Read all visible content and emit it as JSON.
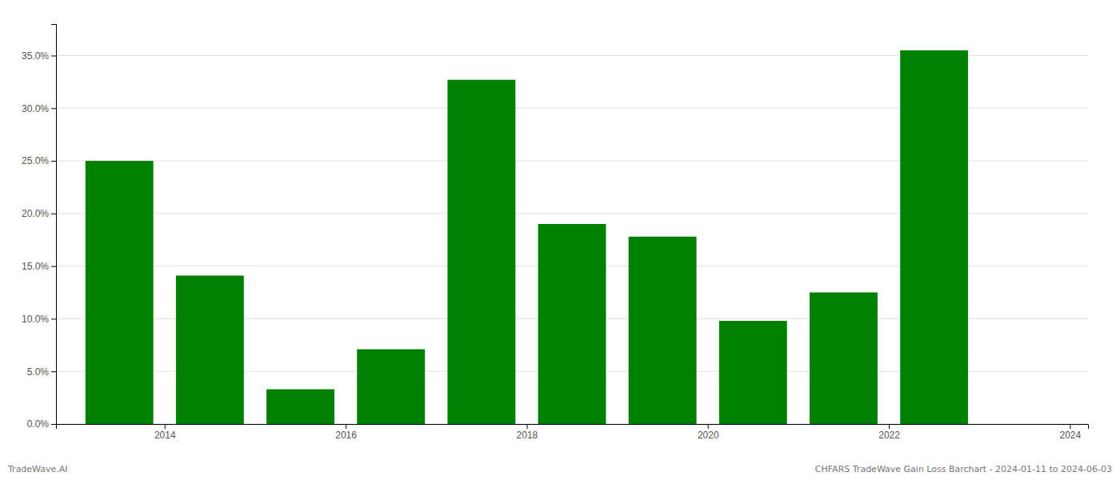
{
  "chart_data": {
    "type": "bar",
    "x": [
      2013.5,
      2014.5,
      2015.5,
      2016.5,
      2017.5,
      2018.5,
      2019.5,
      2020.5,
      2021.5,
      2022.5
    ],
    "values": [
      0.25,
      0.141,
      0.033,
      0.071,
      0.327,
      0.19,
      0.178,
      0.098,
      0.125,
      0.355
    ],
    "color": "#008000",
    "xlim": [
      2012.8,
      2024.2
    ],
    "xticks": [
      2014,
      2016,
      2018,
      2020,
      2022,
      2024
    ],
    "ylim": [
      0.0,
      0.38
    ],
    "yticks": [
      {
        "value": 0.0,
        "label": "0.0%"
      },
      {
        "value": 0.05,
        "label": "5.0%"
      },
      {
        "value": 0.1,
        "label": "10.0%"
      },
      {
        "value": 0.15,
        "label": "15.0%"
      },
      {
        "value": 0.2,
        "label": "20.0%"
      },
      {
        "value": 0.25,
        "label": "25.0%"
      },
      {
        "value": 0.3,
        "label": "30.0%"
      },
      {
        "value": 0.35,
        "label": "35.0%"
      }
    ],
    "grid": true,
    "annotations": [
      "TradeWave.AI",
      "CHFARS TradeWave Gain Loss Barchart - 2024-01-11 to 2024-06-03"
    ]
  }
}
